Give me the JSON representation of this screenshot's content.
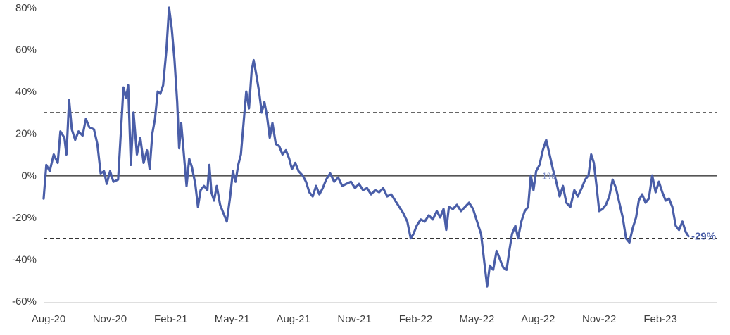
{
  "chart_data": {
    "type": "line",
    "title": "",
    "xlabel": "",
    "ylabel": "",
    "ylim": [
      -60,
      80
    ],
    "ytick_values": [
      80,
      60,
      40,
      20,
      0,
      -20,
      -40,
      -60
    ],
    "ytick_labels": [
      "80%",
      "60%",
      "40%",
      "20%",
      "0%",
      "-20%",
      "-40%",
      "-60%"
    ],
    "xtick_labels": [
      "Aug-20",
      "Nov-20",
      "Feb-21",
      "May-21",
      "Aug-21",
      "Nov-21",
      "Feb-22",
      "May-22",
      "Aug-22",
      "Nov-22",
      "Feb-23"
    ],
    "xlim": [
      "2020-08-01",
      "2023-05-01"
    ],
    "grid": false,
    "reference_lines": [
      {
        "value": 30,
        "style": "dashed"
      },
      {
        "value": 0,
        "style": "solid"
      },
      {
        "value": -30,
        "style": "dashed"
      }
    ],
    "series_color": "#4A5EA8",
    "series": [
      {
        "name": "",
        "points": [
          {
            "x": "2020-08-01",
            "y": -11
          },
          {
            "x": "2020-08-05",
            "y": 5
          },
          {
            "x": "2020-08-10",
            "y": 2
          },
          {
            "x": "2020-08-16",
            "y": 10
          },
          {
            "x": "2020-08-22",
            "y": 6
          },
          {
            "x": "2020-08-26",
            "y": 21
          },
          {
            "x": "2020-09-01",
            "y": 18
          },
          {
            "x": "2020-09-04",
            "y": 10
          },
          {
            "x": "2020-09-08",
            "y": 36
          },
          {
            "x": "2020-09-12",
            "y": 22
          },
          {
            "x": "2020-09-17",
            "y": 17
          },
          {
            "x": "2020-09-22",
            "y": 21
          },
          {
            "x": "2020-09-28",
            "y": 19
          },
          {
            "x": "2020-10-03",
            "y": 27
          },
          {
            "x": "2020-10-08",
            "y": 23
          },
          {
            "x": "2020-10-15",
            "y": 22
          },
          {
            "x": "2020-10-20",
            "y": 15
          },
          {
            "x": "2020-10-25",
            "y": 1
          },
          {
            "x": "2020-10-30",
            "y": 2
          },
          {
            "x": "2020-11-03",
            "y": -4
          },
          {
            "x": "2020-11-08",
            "y": 2
          },
          {
            "x": "2020-11-13",
            "y": -3
          },
          {
            "x": "2020-11-20",
            "y": -2
          },
          {
            "x": "2020-11-24",
            "y": 20
          },
          {
            "x": "2020-11-28",
            "y": 42
          },
          {
            "x": "2020-12-02",
            "y": 37
          },
          {
            "x": "2020-12-05",
            "y": 43
          },
          {
            "x": "2020-12-09",
            "y": 5
          },
          {
            "x": "2020-12-13",
            "y": 30
          },
          {
            "x": "2020-12-18",
            "y": 10
          },
          {
            "x": "2020-12-23",
            "y": 18
          },
          {
            "x": "2020-12-28",
            "y": 6
          },
          {
            "x": "2021-01-02",
            "y": 12
          },
          {
            "x": "2021-01-06",
            "y": 3
          },
          {
            "x": "2021-01-10",
            "y": 20
          },
          {
            "x": "2021-01-14",
            "y": 27
          },
          {
            "x": "2021-01-18",
            "y": 40
          },
          {
            "x": "2021-01-22",
            "y": 39
          },
          {
            "x": "2021-01-26",
            "y": 43
          },
          {
            "x": "2021-01-31",
            "y": 60
          },
          {
            "x": "2021-02-04",
            "y": 80
          },
          {
            "x": "2021-02-08",
            "y": 70
          },
          {
            "x": "2021-02-12",
            "y": 55
          },
          {
            "x": "2021-02-16",
            "y": 35
          },
          {
            "x": "2021-02-19",
            "y": 13
          },
          {
            "x": "2021-02-22",
            "y": 25
          },
          {
            "x": "2021-02-26",
            "y": 10
          },
          {
            "x": "2021-03-02",
            "y": -5
          },
          {
            "x": "2021-03-06",
            "y": 8
          },
          {
            "x": "2021-03-10",
            "y": 4
          },
          {
            "x": "2021-03-15",
            "y": -4
          },
          {
            "x": "2021-03-19",
            "y": -15
          },
          {
            "x": "2021-03-23",
            "y": -7
          },
          {
            "x": "2021-03-28",
            "y": -5
          },
          {
            "x": "2021-04-02",
            "y": -7
          },
          {
            "x": "2021-04-05",
            "y": 5
          },
          {
            "x": "2021-04-08",
            "y": -8
          },
          {
            "x": "2021-04-12",
            "y": -12
          },
          {
            "x": "2021-04-16",
            "y": -5
          },
          {
            "x": "2021-04-21",
            "y": -14
          },
          {
            "x": "2021-04-26",
            "y": -18
          },
          {
            "x": "2021-05-01",
            "y": -22
          },
          {
            "x": "2021-05-06",
            "y": -10
          },
          {
            "x": "2021-05-10",
            "y": 2
          },
          {
            "x": "2021-05-14",
            "y": -3
          },
          {
            "x": "2021-05-18",
            "y": 5
          },
          {
            "x": "2021-05-22",
            "y": 10
          },
          {
            "x": "2021-05-26",
            "y": 25
          },
          {
            "x": "2021-05-30",
            "y": 40
          },
          {
            "x": "2021-06-03",
            "y": 32
          },
          {
            "x": "2021-06-07",
            "y": 50
          },
          {
            "x": "2021-06-10",
            "y": 55
          },
          {
            "x": "2021-06-14",
            "y": 48
          },
          {
            "x": "2021-06-18",
            "y": 40
          },
          {
            "x": "2021-06-22",
            "y": 30
          },
          {
            "x": "2021-06-26",
            "y": 35
          },
          {
            "x": "2021-06-30",
            "y": 28
          },
          {
            "x": "2021-07-04",
            "y": 18
          },
          {
            "x": "2021-07-08",
            "y": 25
          },
          {
            "x": "2021-07-13",
            "y": 15
          },
          {
            "x": "2021-07-18",
            "y": 14
          },
          {
            "x": "2021-07-23",
            "y": 10
          },
          {
            "x": "2021-07-28",
            "y": 12
          },
          {
            "x": "2021-08-02",
            "y": 8
          },
          {
            "x": "2021-08-06",
            "y": 3
          },
          {
            "x": "2021-08-11",
            "y": 6
          },
          {
            "x": "2021-08-16",
            "y": 2
          },
          {
            "x": "2021-08-22",
            "y": 0
          },
          {
            "x": "2021-08-27",
            "y": -3
          },
          {
            "x": "2021-09-01",
            "y": -8
          },
          {
            "x": "2021-09-06",
            "y": -10
          },
          {
            "x": "2021-09-11",
            "y": -5
          },
          {
            "x": "2021-09-16",
            "y": -9
          },
          {
            "x": "2021-09-21",
            "y": -6
          },
          {
            "x": "2021-09-26",
            "y": -2
          },
          {
            "x": "2021-10-02",
            "y": 1
          },
          {
            "x": "2021-10-08",
            "y": -3
          },
          {
            "x": "2021-10-14",
            "y": -1
          },
          {
            "x": "2021-10-20",
            "y": -5
          },
          {
            "x": "2021-10-26",
            "y": -4
          },
          {
            "x": "2021-11-02",
            "y": -3
          },
          {
            "x": "2021-11-08",
            "y": -6
          },
          {
            "x": "2021-11-14",
            "y": -4
          },
          {
            "x": "2021-11-20",
            "y": -7
          },
          {
            "x": "2021-11-26",
            "y": -6
          },
          {
            "x": "2021-12-02",
            "y": -9
          },
          {
            "x": "2021-12-08",
            "y": -7
          },
          {
            "x": "2021-12-14",
            "y": -8
          },
          {
            "x": "2021-12-20",
            "y": -6
          },
          {
            "x": "2021-12-26",
            "y": -10
          },
          {
            "x": "2022-01-01",
            "y": -9
          },
          {
            "x": "2022-01-07",
            "y": -12
          },
          {
            "x": "2022-01-13",
            "y": -15
          },
          {
            "x": "2022-01-19",
            "y": -18
          },
          {
            "x": "2022-01-25",
            "y": -22
          },
          {
            "x": "2022-01-30",
            "y": -30
          },
          {
            "x": "2022-02-03",
            "y": -28
          },
          {
            "x": "2022-02-08",
            "y": -24
          },
          {
            "x": "2022-02-14",
            "y": -21
          },
          {
            "x": "2022-02-20",
            "y": -22
          },
          {
            "x": "2022-02-26",
            "y": -19
          },
          {
            "x": "2022-03-04",
            "y": -21
          },
          {
            "x": "2022-03-10",
            "y": -17
          },
          {
            "x": "2022-03-15",
            "y": -20
          },
          {
            "x": "2022-03-20",
            "y": -16
          },
          {
            "x": "2022-03-24",
            "y": -26
          },
          {
            "x": "2022-03-28",
            "y": -15
          },
          {
            "x": "2022-04-03",
            "y": -16
          },
          {
            "x": "2022-04-09",
            "y": -14
          },
          {
            "x": "2022-04-15",
            "y": -17
          },
          {
            "x": "2022-04-21",
            "y": -15
          },
          {
            "x": "2022-04-27",
            "y": -13
          },
          {
            "x": "2022-05-03",
            "y": -16
          },
          {
            "x": "2022-05-09",
            "y": -22
          },
          {
            "x": "2022-05-15",
            "y": -28
          },
          {
            "x": "2022-05-20",
            "y": -42
          },
          {
            "x": "2022-05-24",
            "y": -53
          },
          {
            "x": "2022-05-28",
            "y": -43
          },
          {
            "x": "2022-06-02",
            "y": -45
          },
          {
            "x": "2022-06-07",
            "y": -36
          },
          {
            "x": "2022-06-12",
            "y": -40
          },
          {
            "x": "2022-06-17",
            "y": -44
          },
          {
            "x": "2022-06-22",
            "y": -45
          },
          {
            "x": "2022-06-26",
            "y": -36
          },
          {
            "x": "2022-06-30",
            "y": -28
          },
          {
            "x": "2022-07-05",
            "y": -24
          },
          {
            "x": "2022-07-09",
            "y": -30
          },
          {
            "x": "2022-07-14",
            "y": -22
          },
          {
            "x": "2022-07-19",
            "y": -17
          },
          {
            "x": "2022-07-24",
            "y": -15
          },
          {
            "x": "2022-07-28",
            "y": 0
          },
          {
            "x": "2022-08-01",
            "y": -7
          },
          {
            "x": "2022-08-05",
            "y": 2
          },
          {
            "x": "2022-08-10",
            "y": 5
          },
          {
            "x": "2022-08-15",
            "y": 12
          },
          {
            "x": "2022-08-20",
            "y": 17
          },
          {
            "x": "2022-08-25",
            "y": 10
          },
          {
            "x": "2022-08-30",
            "y": 3
          },
          {
            "x": "2022-09-04",
            "y": -3
          },
          {
            "x": "2022-09-09",
            "y": -10
          },
          {
            "x": "2022-09-14",
            "y": -5
          },
          {
            "x": "2022-09-19",
            "y": -13
          },
          {
            "x": "2022-09-25",
            "y": -15
          },
          {
            "x": "2022-10-01",
            "y": -7
          },
          {
            "x": "2022-10-06",
            "y": -10
          },
          {
            "x": "2022-10-12",
            "y": -6
          },
          {
            "x": "2022-10-17",
            "y": -2
          },
          {
            "x": "2022-10-22",
            "y": 0
          },
          {
            "x": "2022-10-26",
            "y": 10
          },
          {
            "x": "2022-10-30",
            "y": 6
          },
          {
            "x": "2022-11-03",
            "y": -5
          },
          {
            "x": "2022-11-07",
            "y": -17
          },
          {
            "x": "2022-11-12",
            "y": -16
          },
          {
            "x": "2022-11-17",
            "y": -14
          },
          {
            "x": "2022-11-22",
            "y": -10
          },
          {
            "x": "2022-11-27",
            "y": -2
          },
          {
            "x": "2022-12-02",
            "y": -6
          },
          {
            "x": "2022-12-07",
            "y": -13
          },
          {
            "x": "2022-12-12",
            "y": -20
          },
          {
            "x": "2022-12-17",
            "y": -30
          },
          {
            "x": "2022-12-22",
            "y": -32
          },
          {
            "x": "2022-12-27",
            "y": -25
          },
          {
            "x": "2023-01-01",
            "y": -20
          },
          {
            "x": "2023-01-05",
            "y": -12
          },
          {
            "x": "2023-01-10",
            "y": -9
          },
          {
            "x": "2023-01-15",
            "y": -13
          },
          {
            "x": "2023-01-20",
            "y": -11
          },
          {
            "x": "2023-01-25",
            "y": 0
          },
          {
            "x": "2023-01-30",
            "y": -8
          },
          {
            "x": "2023-02-04",
            "y": -3
          },
          {
            "x": "2023-02-09",
            "y": -8
          },
          {
            "x": "2023-02-14",
            "y": -12
          },
          {
            "x": "2023-02-19",
            "y": -11
          },
          {
            "x": "2023-02-24",
            "y": -15
          },
          {
            "x": "2023-03-01",
            "y": -24
          },
          {
            "x": "2023-03-06",
            "y": -26
          },
          {
            "x": "2023-03-11",
            "y": -22
          },
          {
            "x": "2023-03-16",
            "y": -27
          },
          {
            "x": "2023-03-20",
            "y": -29
          }
        ]
      }
    ],
    "annotations": [
      {
        "text": "1%",
        "x": "2022-08-01",
        "y": 0,
        "faint": true
      },
      {
        "text": "-29%",
        "x": "2023-03-20",
        "y": -29,
        "faint": false
      }
    ]
  }
}
